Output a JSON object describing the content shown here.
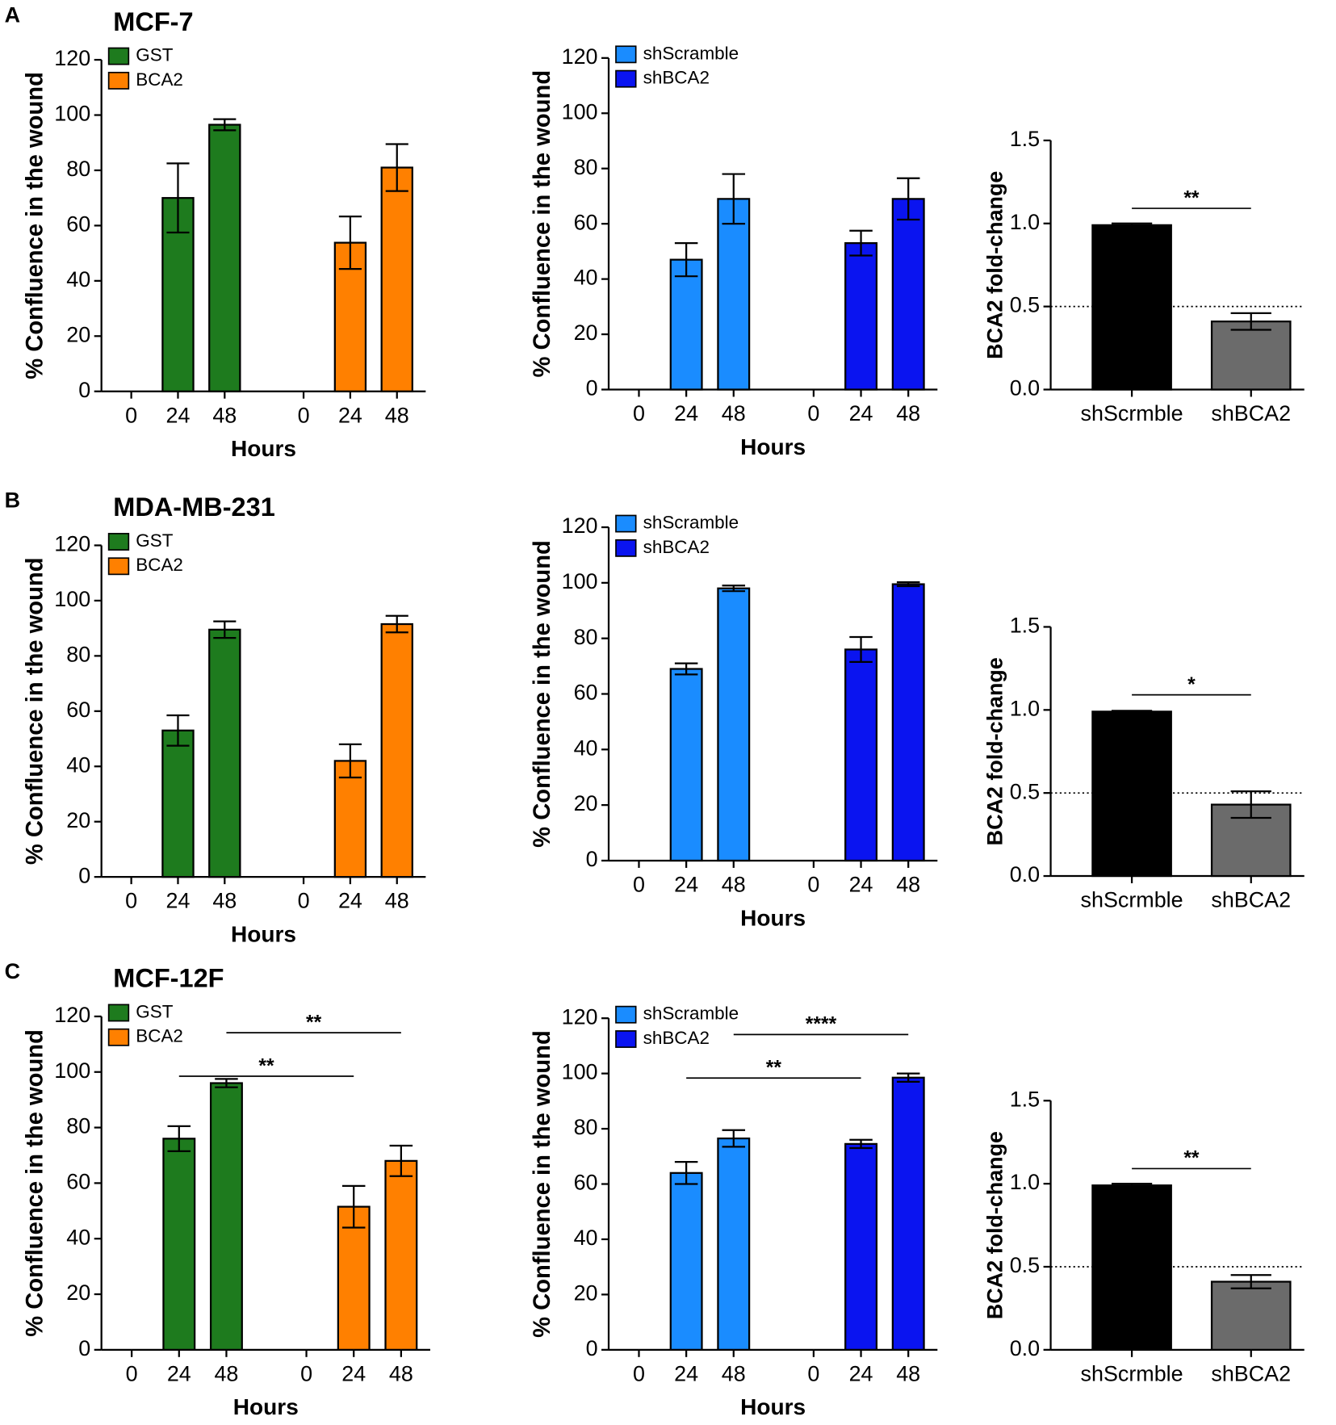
{
  "chart_data": [
    {
      "type": "bar",
      "panel": "A",
      "title": "MCF-7",
      "categories": [
        "0",
        "24",
        "48",
        "0",
        "24",
        "48"
      ],
      "series": [
        {
          "name": "GST",
          "color": "#1e7b1e",
          "values": [
            0,
            70,
            96.5,
            null,
            null,
            null
          ],
          "errors": [
            null,
            12.5,
            2,
            null,
            null,
            null
          ]
        },
        {
          "name": "BCA2",
          "color": "#ff8000",
          "values": [
            null,
            null,
            null,
            0,
            53.8,
            81
          ],
          "errors": [
            null,
            null,
            null,
            null,
            9.5,
            8.5
          ]
        }
      ],
      "ylim": [
        0,
        120
      ],
      "yticks": [
        0,
        20,
        40,
        60,
        80,
        100,
        120
      ],
      "xlabel": "Hours",
      "ylabel": "% Confluence in the wound",
      "annotations": []
    },
    {
      "type": "bar",
      "categories": [
        "0",
        "24",
        "48",
        "0",
        "24",
        "48"
      ],
      "series": [
        {
          "name": "shScramble",
          "color": "#1a8cff",
          "values": [
            0,
            47,
            69,
            null,
            null,
            null
          ],
          "errors": [
            null,
            6,
            9,
            null,
            null,
            null
          ]
        },
        {
          "name": "shBCA2",
          "color": "#0a14f0",
          "values": [
            null,
            null,
            null,
            0,
            53,
            69
          ],
          "errors": [
            null,
            null,
            null,
            null,
            4.5,
            7.5
          ]
        }
      ],
      "ylim": [
        0,
        120
      ],
      "yticks": [
        0,
        20,
        40,
        60,
        80,
        100,
        120
      ],
      "xlabel": "Hours",
      "ylabel": "% Confluence in the wound",
      "annotations": []
    },
    {
      "type": "bar",
      "categories": [
        "shScrmble",
        "shBCA2"
      ],
      "values": [
        0.99,
        0.41
      ],
      "errors": [
        0.01,
        0.05
      ],
      "colors": [
        "#000000",
        "#6b6b6b"
      ],
      "ylim": [
        0,
        1.5
      ],
      "yticks": [
        {
          "value": 0,
          "label": "0.0"
        },
        {
          "value": 0.5,
          "label": "0.5"
        },
        {
          "value": 1,
          "label": "1.0"
        },
        {
          "value": 1.5,
          "label": "1.5"
        }
      ],
      "ylabel": "BCA2 fold-change",
      "reference_line": 0.5,
      "annotations": [
        {
          "text": "**",
          "between": [
            0,
            1
          ]
        }
      ]
    },
    {
      "type": "bar",
      "panel": "B",
      "title": "MDA-MB-231",
      "categories": [
        "0",
        "24",
        "48",
        "0",
        "24",
        "48"
      ],
      "series": [
        {
          "name": "GST",
          "color": "#1e7b1e",
          "values": [
            0,
            53,
            89.5,
            null,
            null,
            null
          ],
          "errors": [
            null,
            5.5,
            3,
            null,
            null,
            null
          ]
        },
        {
          "name": "BCA2",
          "color": "#ff8000",
          "values": [
            null,
            null,
            null,
            0,
            42,
            91.5
          ],
          "errors": [
            null,
            null,
            null,
            null,
            6,
            3
          ]
        }
      ],
      "ylim": [
        0,
        120
      ],
      "yticks": [
        0,
        20,
        40,
        60,
        80,
        100,
        120
      ],
      "xlabel": "Hours",
      "ylabel": "% Confluence in the wound",
      "annotations": []
    },
    {
      "type": "bar",
      "categories": [
        "0",
        "24",
        "48",
        "0",
        "24",
        "48"
      ],
      "series": [
        {
          "name": "shScramble",
          "color": "#1a8cff",
          "values": [
            0,
            69,
            98,
            null,
            null,
            null
          ],
          "errors": [
            null,
            2,
            1,
            null,
            null,
            null
          ]
        },
        {
          "name": "shBCA2",
          "color": "#0a14f0",
          "values": [
            null,
            null,
            null,
            0,
            76,
            99.5
          ],
          "errors": [
            null,
            null,
            null,
            null,
            4.5,
            0.7
          ]
        }
      ],
      "ylim": [
        0,
        120
      ],
      "yticks": [
        0,
        20,
        40,
        60,
        80,
        100,
        120
      ],
      "xlabel": "Hours",
      "ylabel": "% Confluence in the wound",
      "annotations": []
    },
    {
      "type": "bar",
      "categories": [
        "shScrmble",
        "shBCA2"
      ],
      "values": [
        0.99,
        0.43
      ],
      "errors": [
        0.005,
        0.08
      ],
      "colors": [
        "#000000",
        "#6b6b6b"
      ],
      "ylim": [
        0,
        1.5
      ],
      "yticks": [
        {
          "value": 0,
          "label": "0.0"
        },
        {
          "value": 0.5,
          "label": "0.5"
        },
        {
          "value": 1,
          "label": "1.0"
        },
        {
          "value": 1.5,
          "label": "1.5"
        }
      ],
      "ylabel": "BCA2 fold-change",
      "reference_line": 0.5,
      "annotations": [
        {
          "text": "*",
          "between": [
            0,
            1
          ]
        }
      ]
    },
    {
      "type": "bar",
      "panel": "C",
      "title": "MCF-12F",
      "categories": [
        "0",
        "24",
        "48",
        "0",
        "24",
        "48"
      ],
      "series": [
        {
          "name": "GST",
          "color": "#1e7b1e",
          "values": [
            0,
            76,
            96,
            null,
            null,
            null
          ],
          "errors": [
            null,
            4.5,
            1.5,
            null,
            null,
            null
          ]
        },
        {
          "name": "BCA2",
          "color": "#ff8000",
          "values": [
            null,
            null,
            null,
            0,
            51.5,
            68
          ],
          "errors": [
            null,
            null,
            null,
            null,
            7.5,
            5.5
          ]
        }
      ],
      "ylim": [
        0,
        120
      ],
      "yticks": [
        0,
        20,
        40,
        60,
        80,
        100,
        120
      ],
      "xlabel": "Hours",
      "ylabel": "% Confluence in the wound",
      "annotations": [
        {
          "text": "**",
          "between": [
            2,
            5
          ]
        },
        {
          "text": "**",
          "between": [
            1,
            4
          ]
        }
      ]
    },
    {
      "type": "bar",
      "categories": [
        "0",
        "24",
        "48",
        "0",
        "24",
        "48"
      ],
      "series": [
        {
          "name": "shScramble",
          "color": "#1a8cff",
          "values": [
            0,
            64,
            76.5,
            null,
            null,
            null
          ],
          "errors": [
            null,
            4,
            3,
            null,
            null,
            null
          ]
        },
        {
          "name": "shBCA2",
          "color": "#0a14f0",
          "values": [
            null,
            null,
            null,
            0,
            74.5,
            98.5
          ],
          "errors": [
            null,
            null,
            null,
            null,
            1.5,
            1.5
          ]
        }
      ],
      "ylim": [
        0,
        120
      ],
      "yticks": [
        0,
        20,
        40,
        60,
        80,
        100,
        120
      ],
      "xlabel": "Hours",
      "ylabel": "% Confluence in the wound",
      "annotations": [
        {
          "text": "****",
          "between": [
            2,
            5
          ]
        },
        {
          "text": "**",
          "between": [
            1,
            4
          ]
        }
      ]
    },
    {
      "type": "bar",
      "categories": [
        "shScrmble",
        "shBCA2"
      ],
      "values": [
        0.99,
        0.41
      ],
      "errors": [
        0.01,
        0.04
      ],
      "colors": [
        "#000000",
        "#6b6b6b"
      ],
      "ylim": [
        0,
        1.5
      ],
      "yticks": [
        {
          "value": 0,
          "label": "0.0"
        },
        {
          "value": 0.5,
          "label": "0.5"
        },
        {
          "value": 1,
          "label": "1.0"
        },
        {
          "value": 1.5,
          "label": "1.5"
        }
      ],
      "ylabel": "BCA2 fold-change",
      "reference_line": 0.5,
      "annotations": [
        {
          "text": "**",
          "between": [
            0,
            1
          ]
        }
      ]
    }
  ]
}
